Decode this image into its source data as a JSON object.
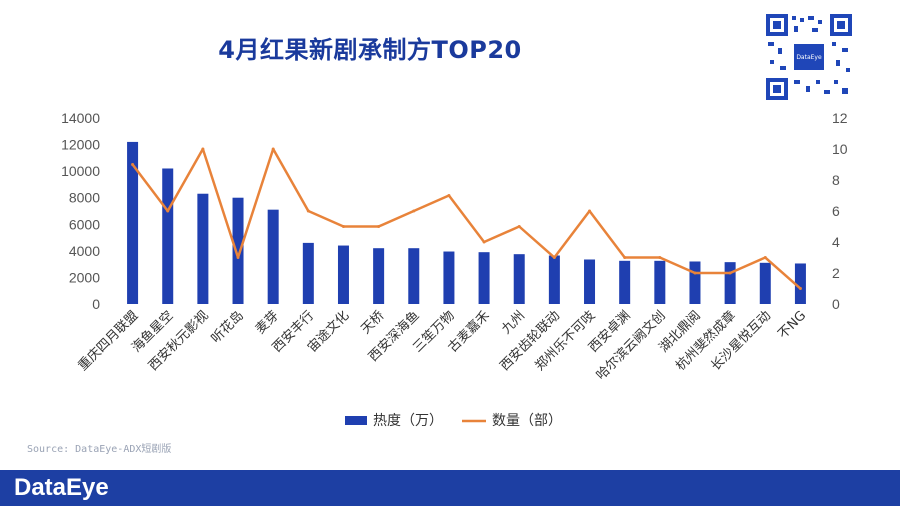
{
  "header": {
    "title": "4月红果新剧承制方TOP20",
    "qr_label": "DataEye"
  },
  "footer": {
    "source": "Source: DataEye-ADX短剧版",
    "brand": "DataEye"
  },
  "colors": {
    "bar": "#1f3fb0",
    "line": "#e8833a",
    "title": "#1a3a9c"
  },
  "chart_data": {
    "type": "bar",
    "title": "4月红果新剧承制方TOP20",
    "categories": [
      "重庆四月联盟",
      "海鱼星空",
      "西安秋元影视",
      "听花岛",
      "麦芽",
      "西安丰行",
      "宙途文化",
      "天桥",
      "西安深海鱼",
      "三笙万物",
      "古麦嘉禾",
      "九州",
      "西安齿轮联动",
      "郑州乐不可吱",
      "西安卓渊",
      "哈尔滨云阙文创",
      "湖北鼎阅",
      "杭州斐然成章",
      "长沙星悦互动",
      "不NG"
    ],
    "series": [
      {
        "name": "热度（万）",
        "type": "bar",
        "axis": "left",
        "values": [
          12200,
          10200,
          8300,
          8000,
          7100,
          4600,
          4400,
          4200,
          4200,
          3950,
          3900,
          3750,
          3650,
          3350,
          3250,
          3250,
          3200,
          3150,
          3100,
          3050
        ]
      },
      {
        "name": "数量（部）",
        "type": "line",
        "axis": "right",
        "values": [
          9,
          6,
          10,
          3,
          10,
          6,
          5,
          5,
          6,
          7,
          4,
          5,
          3,
          6,
          3,
          3,
          2,
          2,
          3,
          1
        ]
      }
    ],
    "y_left": {
      "ylim": [
        0,
        14000
      ],
      "ticks": [
        0,
        2000,
        4000,
        6000,
        8000,
        10000,
        12000,
        14000
      ]
    },
    "y_right": {
      "ylim": [
        0,
        12
      ],
      "ticks": [
        0,
        2,
        4,
        6,
        8,
        10,
        12
      ]
    },
    "legend": "bottom",
    "grid": false
  }
}
